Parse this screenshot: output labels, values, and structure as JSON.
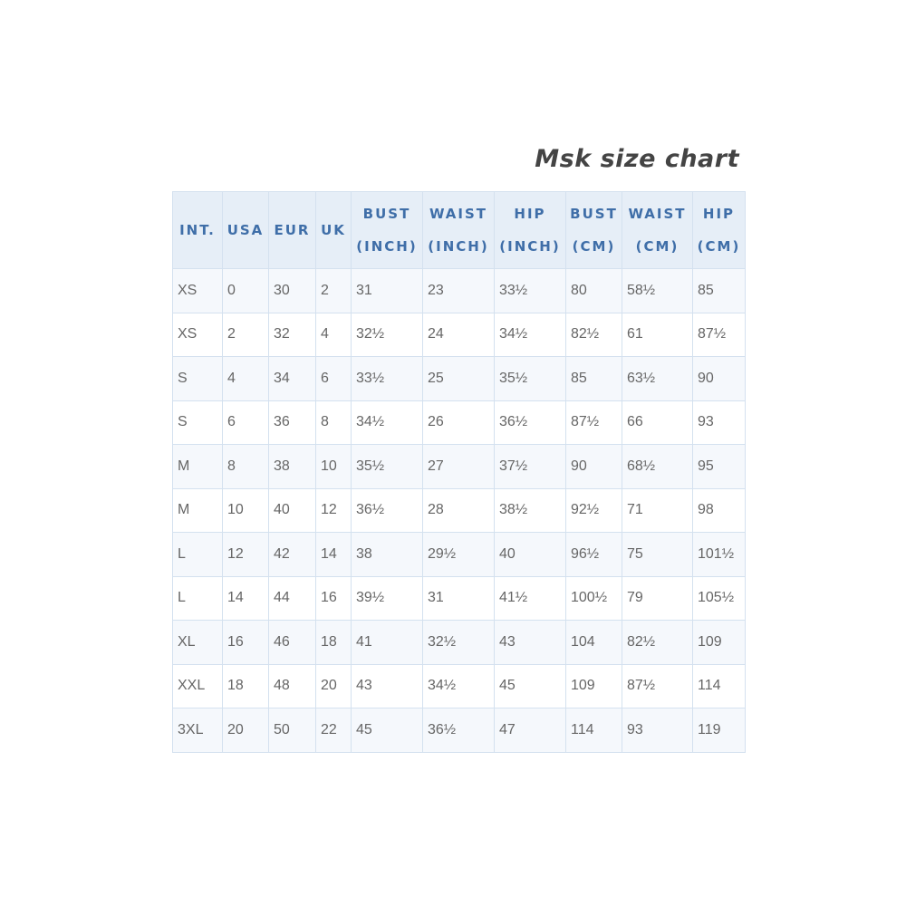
{
  "title": "Msk size chart",
  "headers": [
    [
      "INT."
    ],
    [
      "USA"
    ],
    [
      "EUR"
    ],
    [
      "UK"
    ],
    [
      "BUST",
      "(INCH)"
    ],
    [
      "WAIST",
      "(INCH)"
    ],
    [
      "HIP",
      "(INCH)"
    ],
    [
      "BUST",
      "(CM)"
    ],
    [
      "WAIST",
      "(CM)"
    ],
    [
      "HIP",
      "(CM)"
    ]
  ],
  "rows": [
    [
      "XS",
      "0",
      "30",
      "2",
      "31",
      "23",
      "33½",
      "80",
      "58½",
      "85"
    ],
    [
      "XS",
      "2",
      "32",
      "4",
      "32½",
      "24",
      "34½",
      "82½",
      "61",
      "87½"
    ],
    [
      "S",
      "4",
      "34",
      "6",
      "33½",
      "25",
      "35½",
      "85",
      "63½",
      "90"
    ],
    [
      "S",
      "6",
      "36",
      "8",
      "34½",
      "26",
      "36½",
      "87½",
      "66",
      "93"
    ],
    [
      "M",
      "8",
      "38",
      "10",
      "35½",
      "27",
      "37½",
      "90",
      "68½",
      "95"
    ],
    [
      "M",
      "10",
      "40",
      "12",
      "36½",
      "28",
      "38½",
      "92½",
      "71",
      "98"
    ],
    [
      "L",
      "12",
      "42",
      "14",
      "38",
      "29½",
      "40",
      "96½",
      "75",
      "101½"
    ],
    [
      "L",
      "14",
      "44",
      "16",
      "39½",
      "31",
      "41½",
      "100½",
      "79",
      "105½"
    ],
    [
      "XL",
      "16",
      "46",
      "18",
      "41",
      "32½",
      "43",
      "104",
      "82½",
      "109"
    ],
    [
      "XXL",
      "18",
      "48",
      "20",
      "43",
      "34½",
      "45",
      "109",
      "87½",
      "114"
    ],
    [
      "3XL",
      "20",
      "50",
      "22",
      "45",
      "36½",
      "47",
      "114",
      "93",
      "119"
    ]
  ],
  "colors": {
    "header_bg": "#e6eef7",
    "header_text": "#3f6ea8",
    "border": "#d4e1ef",
    "cell_text": "#666666"
  }
}
